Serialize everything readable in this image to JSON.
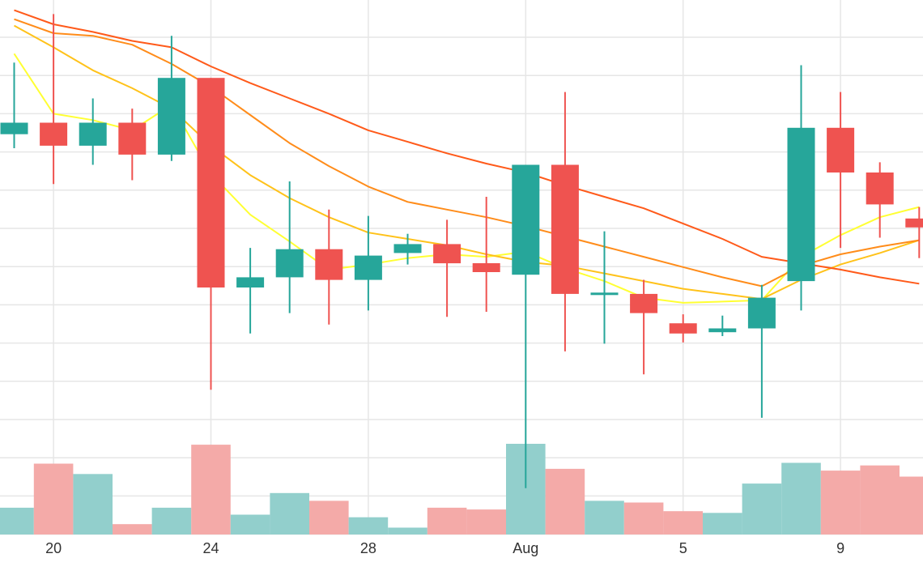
{
  "chart_data": {
    "type": "candlestick",
    "x_tick_labels": [
      {
        "day_index": 1,
        "label": "20"
      },
      {
        "day_index": 5,
        "label": "24"
      },
      {
        "day_index": 9,
        "label": "28"
      },
      {
        "day_index": 13,
        "label": "Aug"
      },
      {
        "day_index": 17,
        "label": "5"
      },
      {
        "day_index": 21,
        "label": "9"
      }
    ],
    "price_range": [
      -30,
      420
    ],
    "volume_range": [
      0,
      100
    ],
    "grid": true,
    "colors": {
      "up": "#26a69a",
      "down": "#ef5350",
      "up_volume": "#92cfcc",
      "down_volume": "#f4aaa8",
      "grid": "#e6e6e6",
      "ma_fast": "#ffff33",
      "ma_mid1": "#ffc21a",
      "ma_mid2": "#ff8c1a",
      "ma_slow": "#ff5a1a"
    },
    "candles": [
      {
        "day": "19",
        "open": 315,
        "high": 371,
        "low": 304,
        "close": 324,
        "volume": 31
      },
      {
        "day": "20",
        "open": 324,
        "high": 409,
        "low": 276,
        "close": 306,
        "volume": 82
      },
      {
        "day": "21",
        "open": 306,
        "high": 343,
        "low": 291,
        "close": 324,
        "volume": 70
      },
      {
        "day": "22",
        "open": 324,
        "high": 335,
        "low": 279,
        "close": 299,
        "volume": 12
      },
      {
        "day": "23",
        "open": 299,
        "high": 392,
        "low": 294,
        "close": 359,
        "volume": 31
      },
      {
        "day": "24",
        "open": 359,
        "high": 359,
        "low": 115,
        "close": 195,
        "volume": 104
      },
      {
        "day": "25",
        "open": 195,
        "high": 226,
        "low": 159,
        "close": 203,
        "volume": 23
      },
      {
        "day": "26",
        "open": 203,
        "high": 278,
        "low": 175,
        "close": 225,
        "volume": 48
      },
      {
        "day": "27",
        "open": 225,
        "high": 256,
        "low": 166,
        "close": 201,
        "volume": 39
      },
      {
        "day": "28",
        "open": 201,
        "high": 251,
        "low": 177,
        "close": 220,
        "volume": 20
      },
      {
        "day": "29",
        "open": 222,
        "high": 237,
        "low": 213,
        "close": 229,
        "volume": 8
      },
      {
        "day": "30",
        "open": 229,
        "high": 248,
        "low": 172,
        "close": 214,
        "volume": 31
      },
      {
        "day": "31",
        "open": 214,
        "high": 266,
        "low": 176,
        "close": 207,
        "volume": 29
      },
      {
        "day": "Aug",
        "open": 205,
        "high": 291,
        "low": 38,
        "close": 291,
        "volume": 105
      },
      {
        "day": "2",
        "open": 291,
        "high": 348,
        "low": 145,
        "close": 190,
        "volume": 76
      },
      {
        "day": "3",
        "open": 190,
        "high": 239,
        "low": 151,
        "close": 191,
        "volume": 39
      },
      {
        "day": "4",
        "open": 190,
        "high": 201,
        "low": 127,
        "close": 175,
        "volume": 37
      },
      {
        "day": "5",
        "open": 167,
        "high": 174,
        "low": 152,
        "close": 159,
        "volume": 27
      },
      {
        "day": "6",
        "open": 160,
        "high": 173,
        "low": 157,
        "close": 163,
        "volume": 25
      },
      {
        "day": "7",
        "open": 163,
        "high": 197,
        "low": 93,
        "close": 187,
        "volume": 59
      },
      {
        "day": "8",
        "open": 200,
        "high": 369,
        "low": 177,
        "close": 320,
        "volume": 83
      },
      {
        "day": "9",
        "open": 320,
        "high": 348,
        "low": 226,
        "close": 285,
        "volume": 74
      },
      {
        "day": "10",
        "open": 285,
        "high": 293,
        "low": 234,
        "close": 260,
        "volume": 80
      },
      {
        "day": "11",
        "open": 249,
        "high": 258,
        "low": 218,
        "close": 242,
        "volume": 67
      }
    ],
    "moving_averages": [
      {
        "name": "ma_fast",
        "values": [
          378,
          331,
          326,
          318,
          338,
          284,
          252,
          231,
          209,
          213,
          218,
          221,
          219,
          223,
          210,
          200,
          187,
          183,
          184,
          185,
          219,
          236,
          250,
          258
        ]
      },
      {
        "name": "ma_mid1",
        "values": [
          400,
          383,
          365,
          351,
          335,
          306,
          283,
          265,
          250,
          238,
          233,
          228,
          221,
          215,
          212,
          206,
          200,
          194,
          190,
          186,
          201,
          213,
          222,
          232
        ]
      },
      {
        "name": "ma_mid2",
        "values": [
          405,
          394,
          392,
          385,
          370,
          352,
          330,
          308,
          290,
          274,
          262,
          256,
          250,
          243,
          235,
          227,
          219,
          211,
          203,
          196,
          212,
          221,
          227,
          232
        ]
      },
      {
        "name": "ma_slow",
        "values": [
          412,
          401,
          395,
          388,
          383,
          368,
          355,
          343,
          331,
          318,
          309,
          300,
          292,
          285,
          275,
          266,
          257,
          245,
          233,
          219,
          214,
          209,
          203,
          198
        ]
      }
    ]
  }
}
